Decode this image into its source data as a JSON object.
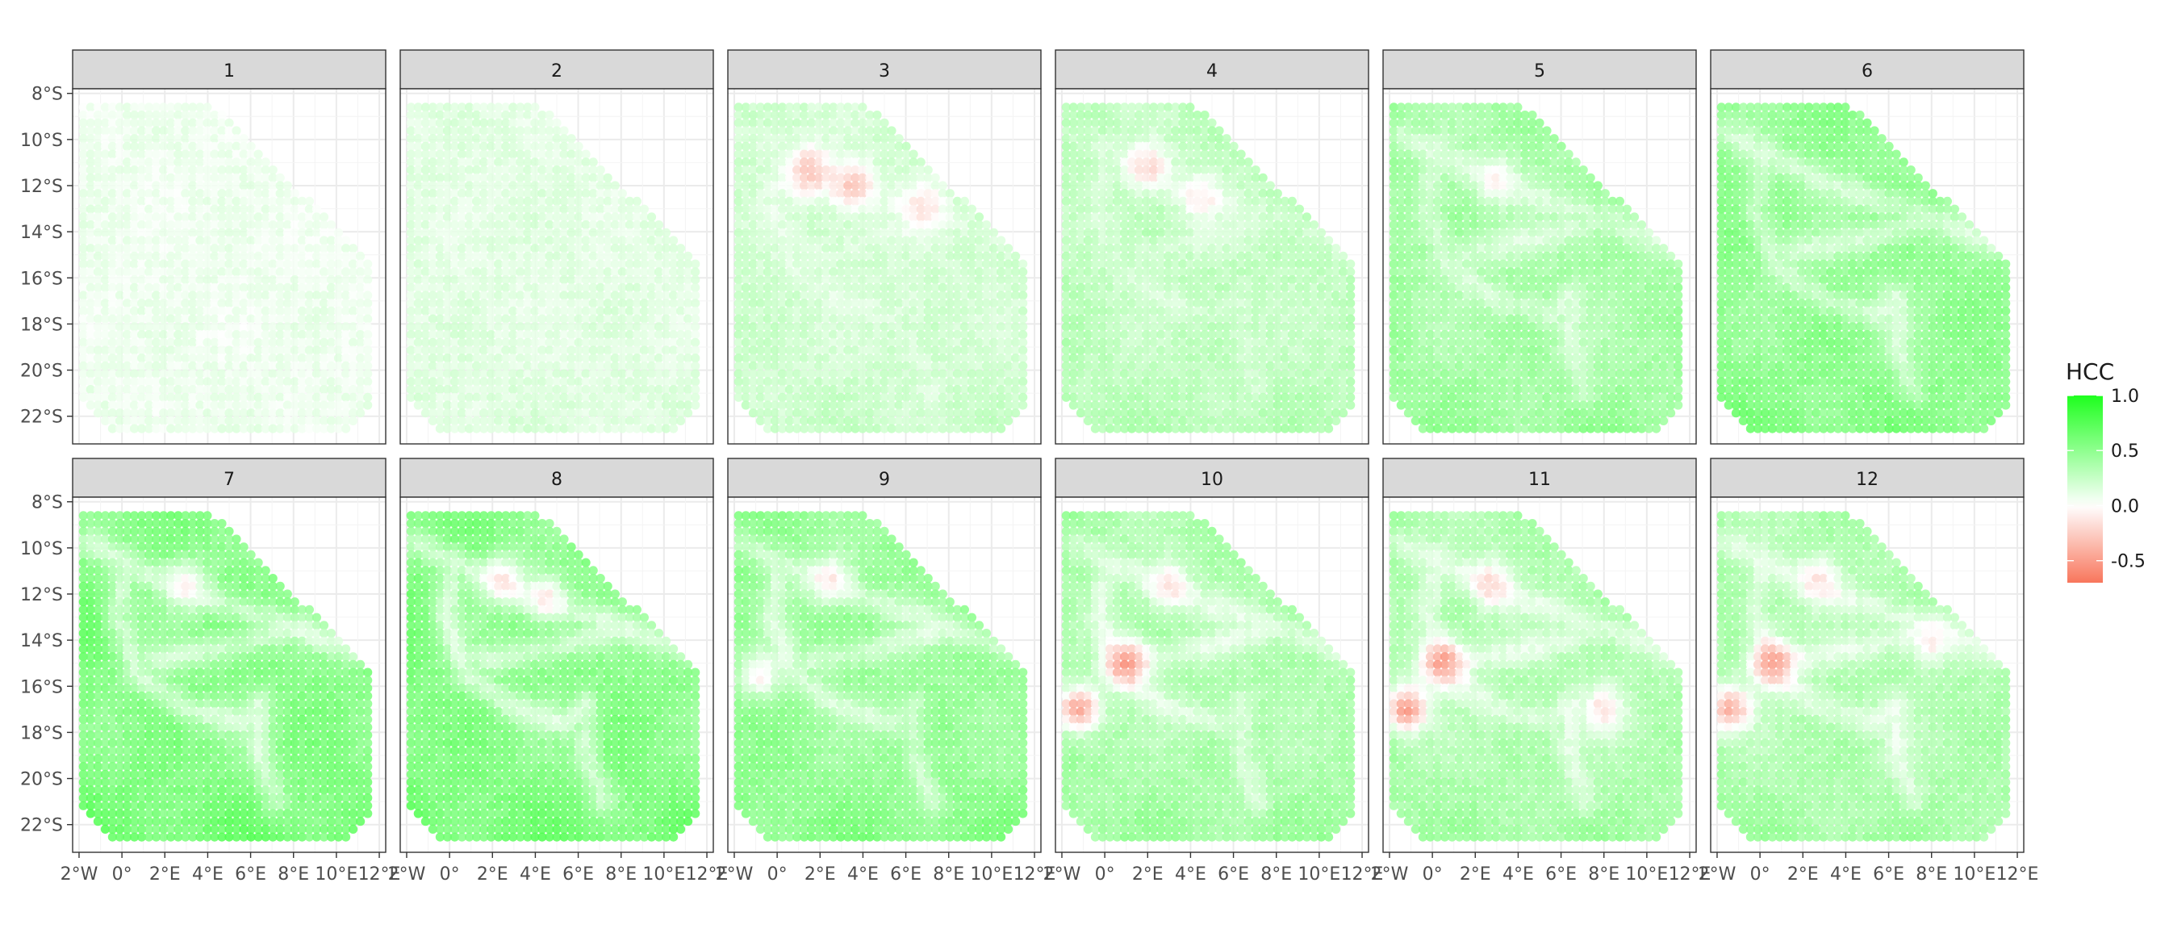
{
  "chart_data": {
    "type": "heatmap",
    "facets": [
      "1",
      "2",
      "3",
      "4",
      "5",
      "6",
      "7",
      "8",
      "9",
      "10",
      "11",
      "12"
    ],
    "x_ticks": [
      "2°W",
      "0°",
      "2°E",
      "4°E",
      "6°E",
      "8°E",
      "10°E",
      "12°E"
    ],
    "x_tick_values": [
      -2,
      0,
      2,
      4,
      6,
      8,
      10,
      12
    ],
    "y_ticks": [
      "8°S",
      "10°S",
      "12°S",
      "14°S",
      "16°S",
      "18°S",
      "20°S",
      "22°S"
    ],
    "y_tick_values": [
      -8,
      -10,
      -12,
      -14,
      -16,
      -18,
      -20,
      -22
    ],
    "xlim": [
      -2.3,
      12.3
    ],
    "ylim": [
      -23.2,
      -7.8
    ],
    "grid": true,
    "legend": {
      "title": "HCC",
      "position": "right",
      "breaks": [
        "1.0",
        "0.5",
        "0.0",
        "-0.5"
      ],
      "break_values": [
        1.0,
        0.5,
        0.0,
        -0.5
      ],
      "range": [
        -0.7,
        1.0
      ],
      "low_color": "#f8765c",
      "mid_color": "#ffffff",
      "high_color": "#1eff1e"
    },
    "domain_polygon": [
      [
        -1.8,
        -8.5
      ],
      [
        4.2,
        -8.5
      ],
      [
        11.7,
        -15.4
      ],
      [
        11.7,
        -21.3
      ],
      [
        10.5,
        -22.6
      ],
      [
        -0.6,
        -22.6
      ],
      [
        -1.8,
        -21.3
      ]
    ],
    "panel_levels": [
      {
        "facet": "1",
        "mean_hcc": 0.08,
        "ridge": 0.0,
        "features": []
      },
      {
        "facet": "2",
        "mean_hcc": 0.14,
        "ridge": 0.0,
        "features": []
      },
      {
        "facet": "3",
        "mean_hcc": 0.22,
        "ridge": 0.15,
        "features": [
          {
            "lon": 1.5,
            "lat": -11.4,
            "hcc": -0.35
          },
          {
            "lon": 3.5,
            "lat": -12.0,
            "hcc": -0.3
          },
          {
            "lon": 6.8,
            "lat": -12.9,
            "hcc": -0.15
          }
        ]
      },
      {
        "facet": "4",
        "mean_hcc": 0.3,
        "ridge": 0.2,
        "features": [
          {
            "lon": 2.0,
            "lat": -11.2,
            "hcc": -0.2
          },
          {
            "lon": 4.5,
            "lat": -12.5,
            "hcc": -0.1
          }
        ]
      },
      {
        "facet": "5",
        "mean_hcc": 0.42,
        "ridge": 0.35,
        "features": [
          {
            "lon": 3.0,
            "lat": -11.7,
            "hcc": -0.05
          }
        ]
      },
      {
        "facet": "6",
        "mean_hcc": 0.52,
        "ridge": 0.4,
        "features": []
      },
      {
        "facet": "7",
        "mean_hcc": 0.58,
        "ridge": 0.45,
        "features": [
          {
            "lon": 3.0,
            "lat": -11.6,
            "hcc": -0.05
          }
        ]
      },
      {
        "facet": "8",
        "mean_hcc": 0.58,
        "ridge": 0.45,
        "features": [
          {
            "lon": 2.5,
            "lat": -11.4,
            "hcc": -0.15
          },
          {
            "lon": 4.5,
            "lat": -12.2,
            "hcc": -0.1
          }
        ]
      },
      {
        "facet": "9",
        "mean_hcc": 0.5,
        "ridge": 0.4,
        "features": [
          {
            "lon": 2.5,
            "lat": -11.4,
            "hcc": -0.12
          },
          {
            "lon": -0.8,
            "lat": -15.5,
            "hcc": -0.05
          }
        ]
      },
      {
        "facet": "10",
        "mean_hcc": 0.4,
        "ridge": 0.4,
        "features": [
          {
            "lon": -1.2,
            "lat": -17.0,
            "hcc": -0.5
          },
          {
            "lon": 1.0,
            "lat": -15.0,
            "hcc": -0.55
          },
          {
            "lon": 3.0,
            "lat": -11.6,
            "hcc": -0.15
          }
        ]
      },
      {
        "facet": "11",
        "mean_hcc": 0.38,
        "ridge": 0.4,
        "features": [
          {
            "lon": -1.2,
            "lat": -17.0,
            "hcc": -0.55
          },
          {
            "lon": 0.5,
            "lat": -15.0,
            "hcc": -0.55
          },
          {
            "lon": 2.8,
            "lat": -11.6,
            "hcc": -0.2
          },
          {
            "lon": 8.0,
            "lat": -17.0,
            "hcc": -0.15
          }
        ]
      },
      {
        "facet": "12",
        "mean_hcc": 0.38,
        "ridge": 0.4,
        "features": [
          {
            "lon": -1.4,
            "lat": -17.0,
            "hcc": -0.45
          },
          {
            "lon": 0.6,
            "lat": -15.0,
            "hcc": -0.55
          },
          {
            "lon": 2.8,
            "lat": -11.4,
            "hcc": -0.15
          },
          {
            "lon": 8.0,
            "lat": -14.0,
            "hcc": -0.1
          }
        ]
      }
    ]
  }
}
